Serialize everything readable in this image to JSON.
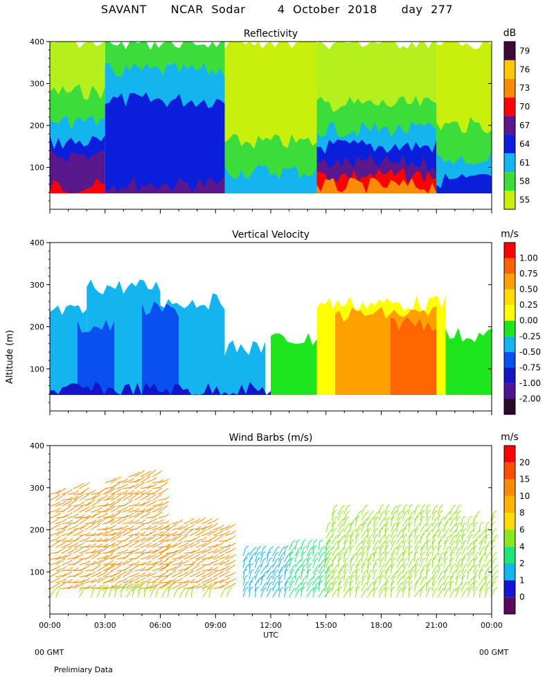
{
  "title": "SAVANT   NCAR Sodar    4 October 2018   day 277",
  "footer": {
    "left_label": "00 GMT",
    "right_label": "00 GMT",
    "note": "Prelimiary Data"
  },
  "shared": {
    "ylabel": "Altitude (m)",
    "xlabel": "UTC",
    "xticks": [
      "00:00",
      "03:00",
      "06:00",
      "09:00",
      "12:00",
      "15:00",
      "18:00",
      "21:00",
      "00:00"
    ],
    "yticks": [
      "100",
      "200",
      "300",
      "400"
    ]
  },
  "chart_data": [
    {
      "type": "heatmap",
      "title": "Reflectivity",
      "x": "time UTC 00:00-24:00",
      "ylim": [
        0,
        400
      ],
      "colorbar": {
        "unit": "dB",
        "labels": [
          "79",
          "76",
          "73",
          "70",
          "67",
          "64",
          "61",
          "58",
          "55"
        ],
        "colors": [
          "#3a0a3a",
          "#ffc800",
          "#ff8c00",
          "#ff0000",
          "#5a188c",
          "#0a1edc",
          "#14b4f0",
          "#3cdc3c",
          "#c8f00a"
        ]
      },
      "bands": [
        {
          "from": 0,
          "to": 3,
          "top": 400,
          "color": "#b4f01e"
        },
        {
          "from": 0,
          "to": 3,
          "top": 280,
          "color": "#3cdc3c"
        },
        {
          "from": 0,
          "to": 3,
          "top": 210,
          "color": "#14b4f0"
        },
        {
          "from": 0,
          "to": 3,
          "top": 160,
          "color": "#0a1edc"
        },
        {
          "from": 0,
          "to": 3,
          "top": 130,
          "color": "#5a188c"
        },
        {
          "from": 0,
          "to": 3,
          "top": 55,
          "color": "#ff0000"
        },
        {
          "from": 3,
          "to": 9.5,
          "top": 400,
          "color": "#3cdc3c"
        },
        {
          "from": 3,
          "to": 9.5,
          "top": 330,
          "color": "#14b4f0"
        },
        {
          "from": 3,
          "to": 9.5,
          "top": 260,
          "color": "#0a1edc"
        },
        {
          "from": 3,
          "to": 9.5,
          "top": 60,
          "color": "#5a188c"
        },
        {
          "from": 9.5,
          "to": 14.5,
          "top": 400,
          "color": "#c8f00a"
        },
        {
          "from": 9.5,
          "to": 14.5,
          "top": 160,
          "color": "#3cdc3c"
        },
        {
          "from": 9.5,
          "to": 14.5,
          "top": 90,
          "color": "#14b4f0"
        },
        {
          "from": 14.5,
          "to": 21,
          "top": 400,
          "color": "#b4f01e"
        },
        {
          "from": 14.5,
          "to": 21,
          "top": 250,
          "color": "#3cdc3c"
        },
        {
          "from": 14.5,
          "to": 21,
          "top": 190,
          "color": "#14b4f0"
        },
        {
          "from": 14.5,
          "to": 21,
          "top": 150,
          "color": "#0a1edc"
        },
        {
          "from": 14.5,
          "to": 21,
          "top": 110,
          "color": "#5a188c"
        },
        {
          "from": 14.5,
          "to": 21,
          "top": 80,
          "color": "#ff0000"
        },
        {
          "from": 14.5,
          "to": 21,
          "top": 55,
          "color": "#ff8c00"
        },
        {
          "from": 21,
          "to": 24,
          "top": 400,
          "color": "#c8f00a"
        },
        {
          "from": 21,
          "to": 24,
          "top": 200,
          "color": "#3cdc3c"
        },
        {
          "from": 21,
          "to": 24,
          "top": 120,
          "color": "#14b4f0"
        },
        {
          "from": 21,
          "to": 24,
          "top": 70,
          "color": "#0a1edc"
        }
      ]
    },
    {
      "type": "heatmap",
      "title": "Vertical Velocity",
      "ylim": [
        0,
        400
      ],
      "colorbar": {
        "unit": "m/s",
        "labels": [
          "1.00",
          "0.75",
          "0.50",
          "0.25",
          "0.00",
          "-0.25",
          "-0.50",
          "-0.75",
          "-1.00",
          "-2.00"
        ],
        "colors": [
          "#ff0000",
          "#ff6400",
          "#ffa000",
          "#ffdc00",
          "#ffff00",
          "#1ee61e",
          "#14b4f0",
          "#0a50f0",
          "#1414c8",
          "#501496",
          "#280a28"
        ]
      },
      "bands": [
        {
          "from": 0,
          "to": 2,
          "top": 235,
          "color": "#14b4f0"
        },
        {
          "from": 2,
          "to": 6,
          "top": 295,
          "color": "#14b4f0"
        },
        {
          "from": 6,
          "to": 9.5,
          "top": 260,
          "color": "#14b4f0"
        },
        {
          "from": 9.5,
          "to": 11.7,
          "top": 150,
          "color": "#14b4f0"
        },
        {
          "from": 1.5,
          "to": 3.5,
          "top": 200,
          "color": "#0a50f0"
        },
        {
          "from": 5,
          "to": 7,
          "top": 240,
          "color": "#0a50f0"
        },
        {
          "from": 0,
          "to": 12,
          "top": 50,
          "color": "#1414c8"
        },
        {
          "from": 12,
          "to": 14.5,
          "top": 170,
          "color": "#1ee61e"
        },
        {
          "from": 14.5,
          "to": 21.5,
          "top": 255,
          "color": "#ffff00"
        },
        {
          "from": 15.5,
          "to": 21,
          "top": 230,
          "color": "#ffa000"
        },
        {
          "from": 18.5,
          "to": 21,
          "top": 210,
          "color": "#ff6400"
        },
        {
          "from": 21.5,
          "to": 24,
          "top": 180,
          "color": "#1ee61e"
        }
      ]
    },
    {
      "type": "scatter",
      "title": "Wind Barbs (m/s)",
      "ylim": [
        0,
        400
      ],
      "colorbar": {
        "unit": "m/s",
        "labels": [
          "20",
          "15",
          "10",
          "8",
          "6",
          "4",
          "2",
          "1",
          "0"
        ],
        "colors": [
          "#ff0000",
          "#ff5000",
          "#ff8c00",
          "#ffb400",
          "#ffdc00",
          "#8ce61e",
          "#1ee678",
          "#14b4f0",
          "#1414d2",
          "#5a0a5a"
        ]
      },
      "segments": [
        {
          "from": 0,
          "to": 3,
          "low": 60,
          "high": 300,
          "speed": 12
        },
        {
          "from": 3,
          "to": 6,
          "low": 60,
          "high": 330,
          "speed": 11
        },
        {
          "from": 6,
          "to": 9.7,
          "low": 60,
          "high": 220,
          "speed": 10
        },
        {
          "from": 0,
          "to": 9.7,
          "low": 40,
          "high": 60,
          "speed": 4
        },
        {
          "from": 10.5,
          "to": 13,
          "low": 40,
          "high": 150,
          "speed": 1.5
        },
        {
          "from": 13,
          "to": 15,
          "low": 40,
          "high": 160,
          "speed": 3
        },
        {
          "from": 15,
          "to": 24,
          "low": 40,
          "high": 250,
          "speed": 5
        }
      ]
    }
  ]
}
